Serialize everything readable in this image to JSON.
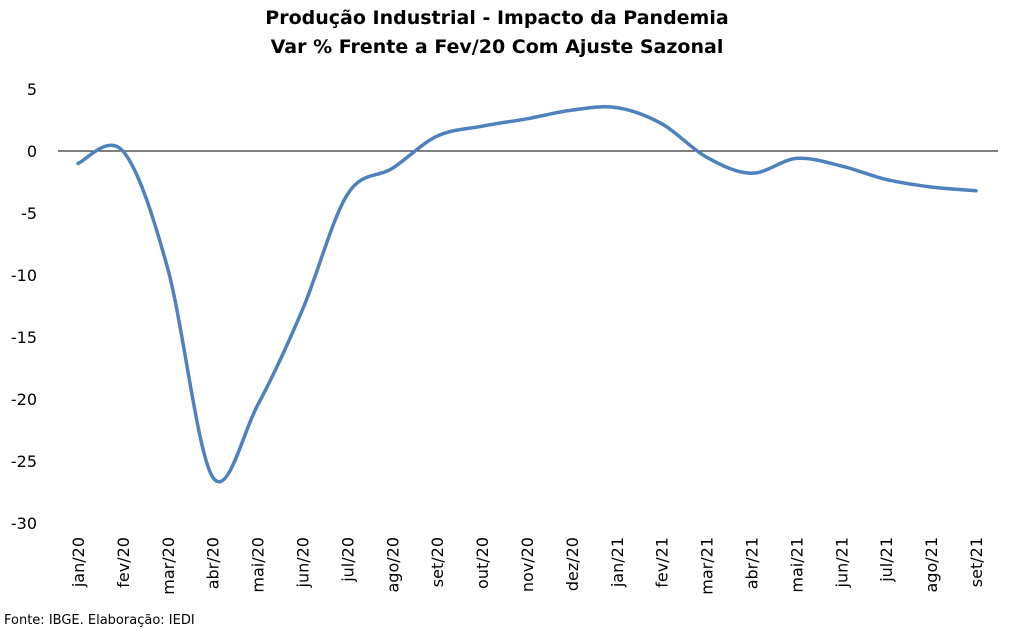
{
  "chart_data": {
    "type": "line",
    "title": "Produção Industrial - Impacto da Pandemia",
    "subtitle": "Var % Frente a Fev/20 Com Ajuste Sazonal",
    "xlabel": "",
    "ylabel": "",
    "ylim": [
      -30,
      5
    ],
    "yticks": [
      5,
      0,
      -5,
      -10,
      -15,
      -20,
      -25,
      -30
    ],
    "grid": false,
    "legend": "none",
    "categories": [
      "jan/20",
      "fev/20",
      "mar/20",
      "abr/20",
      "mai/20",
      "jun/20",
      "jul/20",
      "ago/20",
      "set/20",
      "out/20",
      "nov/20",
      "dez/20",
      "jan/21",
      "fev/21",
      "mar/21",
      "abr/21",
      "mai/21",
      "jun/21",
      "jul/21",
      "ago/21",
      "set/21"
    ],
    "series": [
      {
        "color": "#4f81bd",
        "values": [
          -1.0,
          0.0,
          -9.5,
          -26.3,
          -20.5,
          -12.8,
          -3.5,
          -1.4,
          1.2,
          2.0,
          2.6,
          3.3,
          3.5,
          2.2,
          -0.5,
          -1.8,
          -0.6,
          -1.2,
          -2.3,
          -2.9,
          -3.2
        ]
      }
    ]
  },
  "source": "Fonte: IBGE. Elaboração: IEDI"
}
